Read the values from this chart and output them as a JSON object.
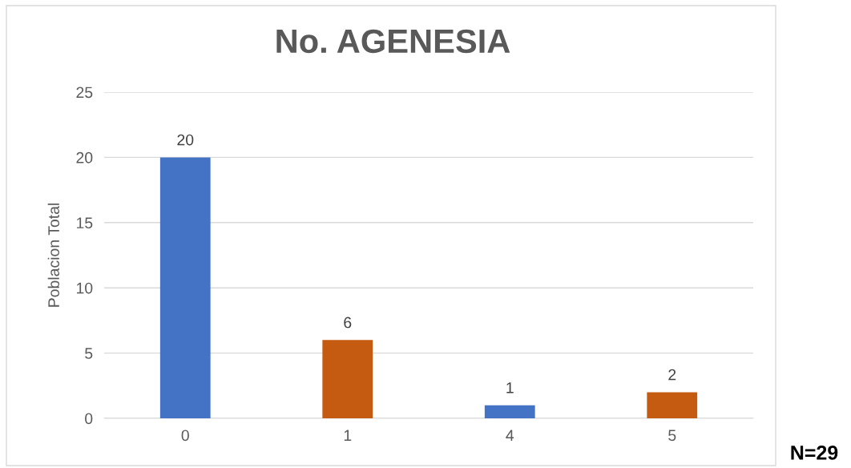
{
  "chart_data": {
    "type": "bar",
    "title": "No. AGENESIA",
    "ylabel": "Poblacion Total",
    "categories": [
      "0",
      "1",
      "4",
      "5"
    ],
    "values": [
      20,
      6,
      1,
      2
    ],
    "colors": [
      "#4472c4",
      "#c55a11",
      "#4472c4",
      "#c55a11"
    ],
    "ylim": [
      0,
      25
    ],
    "yticks": [
      0,
      5,
      10,
      15,
      20,
      25
    ],
    "grid": "y",
    "data_labels": true,
    "annotations": [
      "N=29"
    ]
  }
}
